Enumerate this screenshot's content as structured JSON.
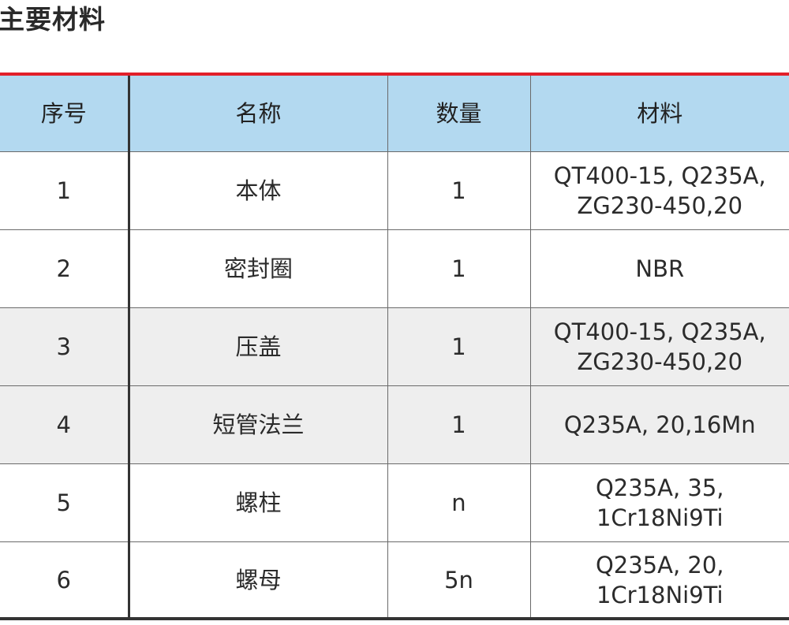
{
  "title": "主要材料",
  "colors": {
    "accent_line": "#e2202a",
    "header_bg": "#b3d9f0",
    "alt_row_bg": "#eeeeee"
  },
  "table": {
    "headers": [
      "序号",
      "名称",
      "数量",
      "材料"
    ],
    "rows": [
      {
        "no": "1",
        "name": "本体",
        "qty": "1",
        "material_lines": [
          "QT400-15, Q235A,",
          "ZG230-450,20"
        ]
      },
      {
        "no": "2",
        "name": "密封圈",
        "qty": "1",
        "material_lines": [
          "NBR"
        ]
      },
      {
        "no": "3",
        "name": "压盖",
        "qty": "1",
        "material_lines": [
          "QT400-15, Q235A,",
          "ZG230-450,20"
        ]
      },
      {
        "no": "4",
        "name": "短管法兰",
        "qty": "1",
        "material_lines": [
          "Q235A, 20,16Mn"
        ]
      },
      {
        "no": "5",
        "name": "螺柱",
        "qty": "n",
        "material_lines": [
          "Q235A, 35,",
          "1Cr18Ni9Ti"
        ]
      },
      {
        "no": "6",
        "name": "螺母",
        "qty": "5n",
        "material_lines": [
          "Q235A, 20,",
          "1Cr18Ni9Ti"
        ]
      }
    ]
  }
}
